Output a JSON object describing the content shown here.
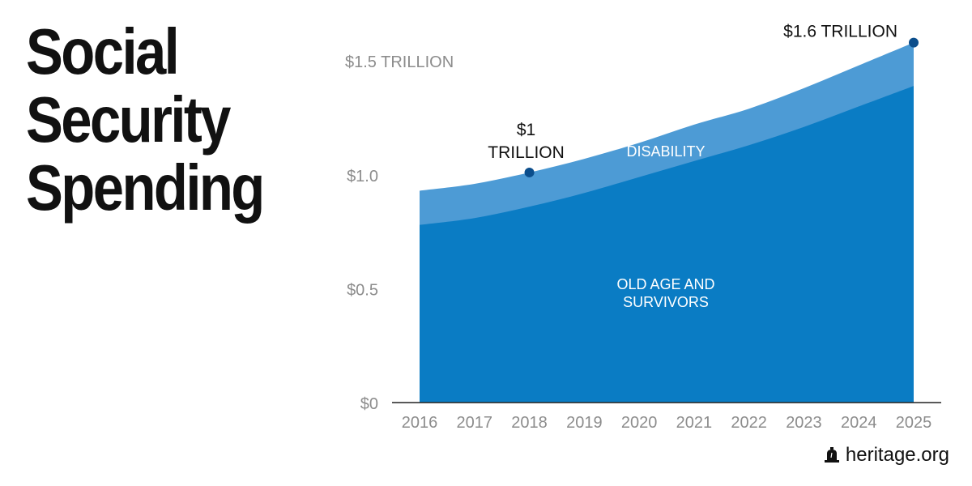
{
  "headline": {
    "lines": [
      "Social",
      "Security",
      "Spending"
    ]
  },
  "branding": {
    "text": "heritage.org",
    "icon": "liberty-bell-icon"
  },
  "colors": {
    "disability": "#4d9bd5",
    "old_age": "#0a7cc4",
    "marker": "#0b4e8c",
    "tick_text": "#8c8c8c",
    "axis_line": "#222222"
  },
  "chart_data": {
    "type": "area",
    "stacked": true,
    "x": [
      "2016",
      "2017",
      "2018",
      "2019",
      "2020",
      "2021",
      "2022",
      "2023",
      "2024",
      "2025"
    ],
    "ylim": [
      0,
      1.6
    ],
    "y_ticks": [
      {
        "value": 0,
        "label": "$0"
      },
      {
        "value": 0.5,
        "label": "$0.5"
      },
      {
        "value": 1.0,
        "label": "$1.0"
      },
      {
        "value": 1.5,
        "label": "$1.5 TRILLION"
      }
    ],
    "series": [
      {
        "name": "OLD AGE AND SURVIVORS",
        "values": [
          0.78,
          0.81,
          0.86,
          0.92,
          0.99,
          1.06,
          1.13,
          1.21,
          1.3,
          1.39
        ]
      },
      {
        "name": "DISABILITY",
        "values": [
          0.15,
          0.15,
          0.15,
          0.15,
          0.15,
          0.16,
          0.16,
          0.17,
          0.18,
          0.19
        ]
      }
    ],
    "series_labels": [
      {
        "series": "OLD AGE AND SURVIVORS",
        "lines": [
          "OLD AGE AND",
          "SURVIVORS"
        ]
      },
      {
        "series": "DISABILITY",
        "lines": [
          "DISABILITY"
        ]
      }
    ],
    "annotations": [
      {
        "x": "2018",
        "y": 1.01,
        "lines": [
          "$1",
          "TRILLION"
        ]
      },
      {
        "x": "2025",
        "y": 1.58,
        "lines": [
          "$1.6 TRILLION"
        ]
      }
    ],
    "xlabel": "",
    "ylabel": "",
    "grid": false,
    "legend": "none"
  }
}
